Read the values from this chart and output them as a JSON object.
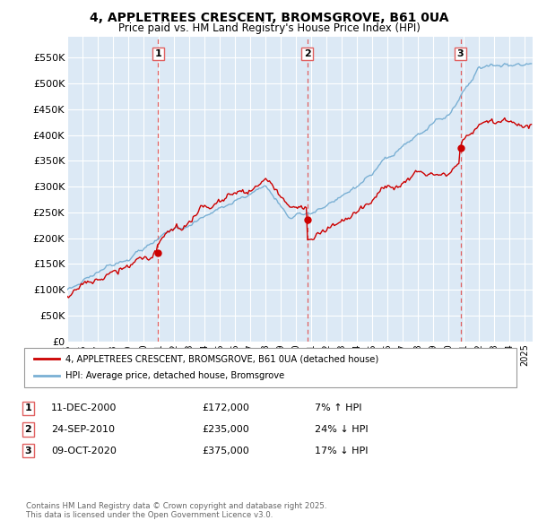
{
  "title_line1": "4, APPLETREES CRESCENT, BROMSGROVE, B61 0UA",
  "title_line2": "Price paid vs. HM Land Registry's House Price Index (HPI)",
  "ylabel_ticks": [
    "£0",
    "£50K",
    "£100K",
    "£150K",
    "£200K",
    "£250K",
    "£300K",
    "£350K",
    "£400K",
    "£450K",
    "£500K",
    "£550K"
  ],
  "ytick_values": [
    0,
    50000,
    100000,
    150000,
    200000,
    250000,
    300000,
    350000,
    400000,
    450000,
    500000,
    550000
  ],
  "ylim": [
    0,
    590000
  ],
  "xlim_start": 1995.0,
  "xlim_end": 2025.5,
  "sale_dates": [
    2000.95,
    2010.73,
    2020.77
  ],
  "sale_prices": [
    172000,
    235000,
    375000
  ],
  "sale_labels": [
    "1",
    "2",
    "3"
  ],
  "red_color": "#cc0000",
  "blue_color": "#7ab0d4",
  "bg_color": "#dce9f5",
  "grid_color": "#ffffff",
  "legend_label_red": "4, APPLETREES CRESCENT, BROMSGROVE, B61 0UA (detached house)",
  "legend_label_blue": "HPI: Average price, detached house, Bromsgrove",
  "table_rows": [
    {
      "num": "1",
      "date": "11-DEC-2000",
      "price": "£172,000",
      "change": "7% ↑ HPI"
    },
    {
      "num": "2",
      "date": "24-SEP-2010",
      "price": "£235,000",
      "change": "24% ↓ HPI"
    },
    {
      "num": "3",
      "date": "09-OCT-2020",
      "price": "£375,000",
      "change": "17% ↓ HPI"
    }
  ],
  "footer_text": "Contains HM Land Registry data © Crown copyright and database right 2025.\nThis data is licensed under the Open Government Licence v3.0.",
  "dashed_line_color": "#e06060"
}
